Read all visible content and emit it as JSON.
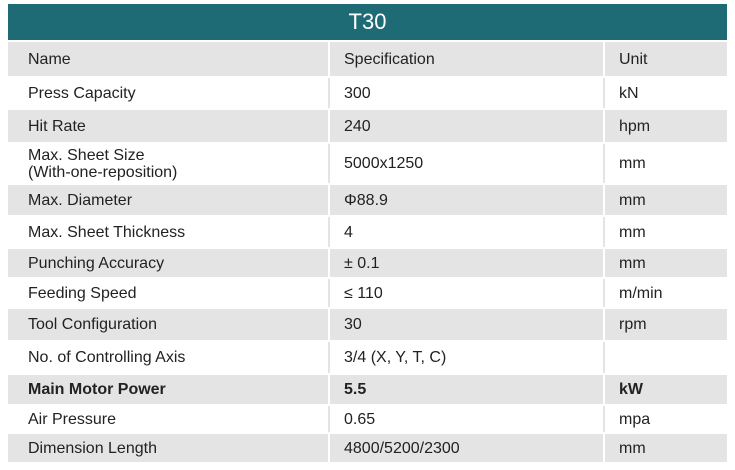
{
  "table": {
    "title": "T30",
    "header": [
      "Name",
      "Specification",
      "Unit"
    ],
    "rows": [
      [
        "Press Capacity",
        "300",
        "kN"
      ],
      [
        "Hit Rate",
        "240",
        "hpm"
      ],
      [
        "Max. Sheet Size\n(With-one-reposition)",
        "5000x1250",
        "mm"
      ],
      [
        "Max. Diameter",
        "Φ88.9",
        "mm"
      ],
      [
        "Max. Sheet Thickness",
        "4",
        "mm"
      ],
      [
        "Punching Accuracy",
        "± 0.1",
        "mm"
      ],
      [
        "Feeding Speed",
        "≤ 110",
        "m/min"
      ],
      [
        "Tool Configuration",
        "30",
        "rpm"
      ],
      [
        "No. of Controlling Axis",
        "3/4 (X, Y, T, C)"
      ],
      [
        "Main Motor Power",
        "5.5",
        "kW"
      ],
      [
        "Air Pressure",
        "0.65",
        "mpa"
      ],
      [
        "Dimension Length",
        "4800/5200/2300",
        "mm"
      ]
    ]
  }
}
